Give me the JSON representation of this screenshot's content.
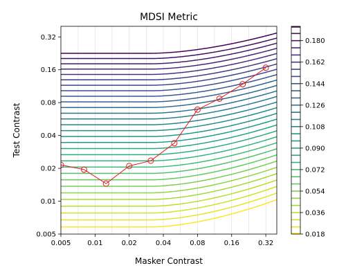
{
  "chart_data": {
    "type": "contour",
    "title": "MDSI Metric",
    "xlabel": "Masker Contrast",
    "ylabel": "Test Contrast",
    "x_scale": "log2",
    "y_scale": "log2",
    "xlim": [
      0.005,
      0.4
    ],
    "ylim": [
      0.005,
      0.4
    ],
    "x_ticks": [
      "0.005",
      "0.01",
      "0.02",
      "0.04",
      "0.08",
      "0.16",
      "0.32"
    ],
    "y_ticks": [
      "0.005",
      "0.01",
      "0.02",
      "0.04",
      "0.08",
      "0.16",
      "0.32"
    ],
    "x_tick_values": [
      0.005,
      0.01,
      0.02,
      0.04,
      0.08,
      0.16,
      0.32
    ],
    "y_tick_values": [
      0.005,
      0.01,
      0.02,
      0.04,
      0.08,
      0.16,
      0.32
    ],
    "vertical_gridlines": true,
    "contour_levels": [
      0.018,
      0.024,
      0.03,
      0.036,
      0.042,
      0.048,
      0.054,
      0.06,
      0.066,
      0.072,
      0.078,
      0.084,
      0.09,
      0.096,
      0.102,
      0.108,
      0.114,
      0.12,
      0.126,
      0.132,
      0.138,
      0.144,
      0.15,
      0.156,
      0.162,
      0.168,
      0.174,
      0.18,
      0.186,
      0.192
    ],
    "colorbar_ticks": [
      "0.018",
      "0.036",
      "0.054",
      "0.072",
      "0.090",
      "0.108",
      "0.126",
      "0.144",
      "0.162",
      "0.180"
    ],
    "colorbar_tick_values": [
      0.018,
      0.036,
      0.054,
      0.072,
      0.09,
      0.108,
      0.126,
      0.144,
      0.162,
      0.18
    ],
    "colormap": "viridis",
    "series": [
      {
        "color": "#e31a1c",
        "marker": "open-circle",
        "x": [
          0.005,
          0.008,
          0.0125,
          0.02,
          0.031,
          0.05,
          0.08,
          0.125,
          0.2,
          0.32
        ],
        "y": [
          0.0215,
          0.0195,
          0.0145,
          0.021,
          0.0235,
          0.034,
          0.069,
          0.087,
          0.118,
          0.167
        ]
      }
    ]
  }
}
